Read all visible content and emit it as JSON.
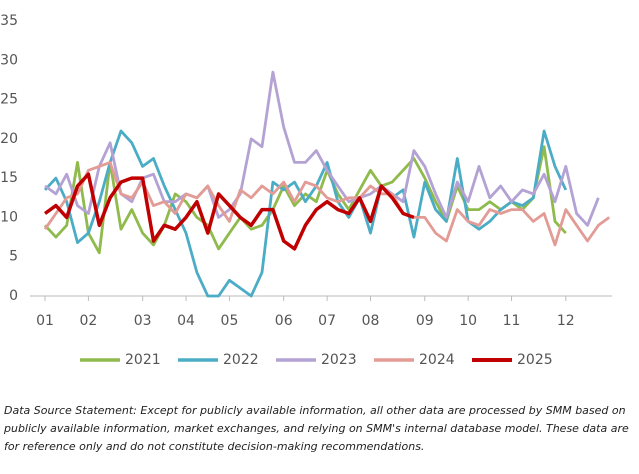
{
  "chart_data": {
    "type": "line",
    "categories": [
      "01",
      null,
      null,
      null,
      "02",
      null,
      null,
      null,
      null,
      "03",
      null,
      null,
      null,
      "04",
      null,
      null,
      null,
      "05",
      null,
      null,
      null,
      null,
      "06",
      null,
      null,
      null,
      "07",
      null,
      null,
      null,
      "08",
      null,
      null,
      null,
      null,
      "09",
      null,
      null,
      null,
      "10",
      null,
      null,
      null,
      "11",
      null,
      null,
      null,
      null,
      "12",
      null,
      null,
      null,
      null
    ],
    "ylim": [
      0,
      35
    ],
    "yticks": [
      0,
      5,
      10,
      15,
      20,
      25,
      30,
      35
    ],
    "grid": false,
    "legend": "bottom",
    "series": [
      {
        "name": "2021",
        "color": "#8fba4c",
        "values": [
          9,
          7.5,
          9,
          17,
          8,
          5.5,
          17,
          8.5,
          11,
          8,
          6.5,
          9,
          13,
          12,
          10,
          9,
          6,
          8,
          10,
          8.5,
          9,
          11,
          14,
          11.5,
          13,
          12,
          16,
          13,
          11,
          13.5,
          16,
          14,
          14.5,
          16,
          17.5,
          15,
          12,
          9.5,
          14,
          11,
          11,
          12,
          11,
          12,
          11,
          12.5,
          19,
          9.5,
          8,
          null,
          null,
          null,
          null
        ]
      },
      {
        "name": "2022",
        "color": "#4bacc6",
        "values": [
          13.5,
          15,
          12,
          6.8,
          8,
          12,
          17,
          21,
          19.5,
          16.5,
          17.5,
          14,
          11,
          8,
          3,
          0,
          0,
          2,
          1,
          0,
          3,
          14.5,
          13.5,
          14.5,
          12,
          14,
          17,
          12,
          10,
          12.5,
          8,
          14,
          12.5,
          13.5,
          7.5,
          14.5,
          11,
          9.5,
          17.5,
          9.5,
          8.5,
          9.5,
          11,
          12,
          11.5,
          12.5,
          21,
          16.5,
          13.5,
          null,
          null,
          null,
          null
        ]
      },
      {
        "name": "2023",
        "color": "#b3a2d3",
        "values": [
          14,
          13,
          15.5,
          11.5,
          10.5,
          16.5,
          19.5,
          13,
          12,
          15,
          15.5,
          12,
          12,
          13,
          12.5,
          14,
          10,
          11,
          13,
          20,
          19,
          28.5,
          21.5,
          17,
          17,
          18.5,
          16,
          14,
          12,
          12.5,
          13,
          14,
          13,
          12,
          18.5,
          16.5,
          13,
          10,
          14.5,
          12,
          16.5,
          12.5,
          14,
          12,
          13.5,
          13,
          15.5,
          12,
          16.5,
          10.5,
          9,
          12.5,
          null
        ]
      },
      {
        "name": "2024",
        "color": "#e39b95",
        "values": [
          8.5,
          10.5,
          12.5,
          13,
          16,
          16.5,
          17,
          13,
          12.5,
          14.5,
          11.5,
          12,
          10.5,
          13,
          12.5,
          14,
          11.5,
          9.5,
          13.5,
          12.5,
          14,
          13,
          14.5,
          12,
          14.5,
          14,
          12.5,
          12,
          12.5,
          12.5,
          14,
          13,
          13,
          10.5,
          10,
          10,
          8,
          7,
          11,
          9.5,
          9,
          11,
          10.5,
          11,
          11,
          9.5,
          10.5,
          6.5,
          11,
          9,
          7,
          9,
          10
        ]
      },
      {
        "name": "2025",
        "color": "#c00000",
        "values": [
          10.5,
          11.5,
          10,
          14,
          15.5,
          9,
          12.5,
          14.5,
          15,
          15,
          7,
          9,
          8.5,
          10,
          12,
          8,
          13,
          11.5,
          10,
          9,
          11,
          11,
          7,
          6,
          9,
          11,
          12,
          11,
          10.5,
          12.5,
          9.5,
          14,
          12.5,
          10.5,
          10,
          null,
          null,
          null,
          null,
          null,
          null,
          null,
          null,
          null,
          null,
          null,
          null,
          null,
          null,
          null,
          null,
          null,
          null
        ]
      }
    ]
  },
  "footnote": "Data Source Statement: Except for publicly available information, all other data are processed by SMM based on publicly available information, market exchanges, and relying on SMM's internal database model. These data are for reference only and do not constitute decision-making recommendations."
}
